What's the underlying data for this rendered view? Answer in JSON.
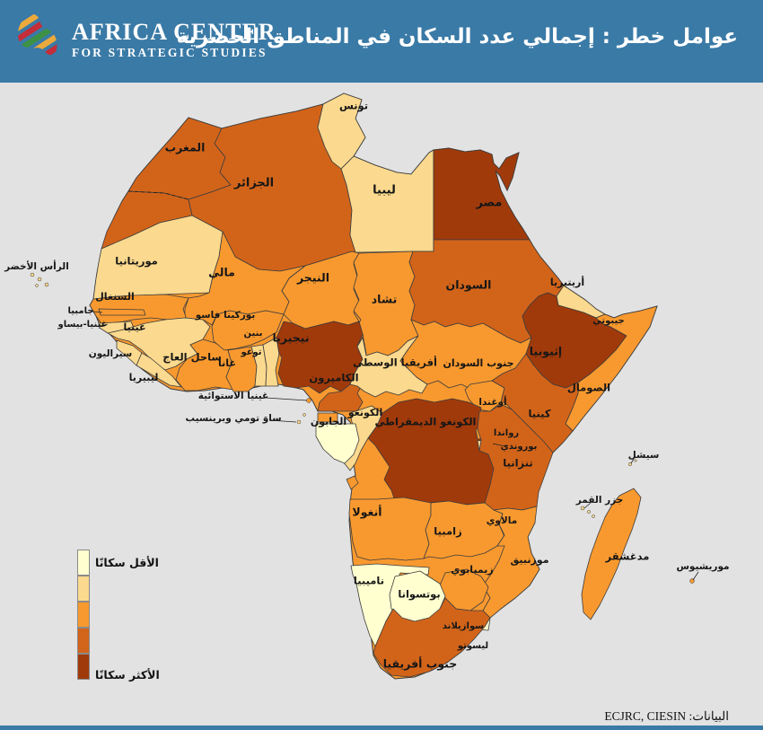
{
  "header": {
    "brand_line1": "AFRICA CENTER",
    "brand_line2": "FOR STRATEGIC STUDIES",
    "title": "عوامل خطر : إجمالي عدد السكان في المناطق الحضرية",
    "header_color": "#3A7AA6",
    "logo_colors": [
      "#3D9144",
      "#EDAA3C",
      "#C42D39",
      "#3D9144",
      "#EDAA3C",
      "#C42D39"
    ]
  },
  "legend": {
    "least_label": "الأقل سكانًا",
    "most_label": "الأكثر سكانًا"
  },
  "footer": {
    "source_label": "البيانات:",
    "source_value": "ECJRC, CIESIN"
  },
  "chart_data": {
    "type": "choropleth",
    "region": "Africa",
    "title": "عوامل خطر : إجمالي عدد السكان في المناطق الحضرية",
    "metric": "إجمالي عدد السكان في المناطق الحضرية",
    "levels_meaning": "1 = least urban population (الأقل سكانًا), 5 = most urban population (الأكثر سكانًا)",
    "palette": [
      "#FFFFD0",
      "#FBD98E",
      "#F8992F",
      "#D2641A",
      "#A03A0B"
    ],
    "ocean_color": "#E2E2E2",
    "border_color": "#3C3C3C",
    "legend": {
      "min_label": "الأقل سكانًا",
      "max_label": "الأكثر سكانًا"
    },
    "source": "ECJRC, CIESIN",
    "countries": [
      {
        "id": "morocco",
        "name": "المغرب",
        "level": 4
      },
      {
        "id": "western-sahara",
        "name": "",
        "level": 4
      },
      {
        "id": "algeria",
        "name": "الجزائر",
        "level": 4
      },
      {
        "id": "tunisia",
        "name": "تونس",
        "level": 2
      },
      {
        "id": "libya",
        "name": "ليبيا",
        "level": 2
      },
      {
        "id": "egypt",
        "name": "مصر",
        "level": 5
      },
      {
        "id": "mauritania",
        "name": "موريتانيا",
        "level": 2
      },
      {
        "id": "mali",
        "name": "مالي",
        "level": 3
      },
      {
        "id": "niger",
        "name": "النيجر",
        "level": 3
      },
      {
        "id": "chad",
        "name": "تشاد",
        "level": 3
      },
      {
        "id": "sudan",
        "name": "السودان",
        "level": 4
      },
      {
        "id": "eritrea",
        "name": "أريتيريا",
        "level": 2
      },
      {
        "id": "djibouti",
        "name": "جيبوتي",
        "level": 2
      },
      {
        "id": "ethiopia",
        "name": "إثيوبيا",
        "level": 5
      },
      {
        "id": "somalia",
        "name": "الصومال",
        "level": 3
      },
      {
        "id": "senegal",
        "name": "السنغال",
        "level": 3
      },
      {
        "id": "gambia",
        "name": "جامبيا",
        "level": 3
      },
      {
        "id": "guinea-bissau",
        "name": "غينيا-بيساو",
        "level": 2
      },
      {
        "id": "guinea",
        "name": "غينيا",
        "level": 2
      },
      {
        "id": "sierra-leone",
        "name": "سيراليون",
        "level": 2
      },
      {
        "id": "liberia",
        "name": "ليبيريا",
        "level": 2
      },
      {
        "id": "ivory-coast",
        "name": "ساحل العاج",
        "level": 3
      },
      {
        "id": "ghana",
        "name": "غانا",
        "level": 3
      },
      {
        "id": "burkina-faso",
        "name": "بوركينا فاسو",
        "level": 3
      },
      {
        "id": "togo",
        "name": "توغو",
        "level": 2
      },
      {
        "id": "benin",
        "name": "بنين",
        "level": 2
      },
      {
        "id": "nigeria",
        "name": "نيجيريا",
        "level": 5
      },
      {
        "id": "cameroon",
        "name": "الكاميرون",
        "level": 4
      },
      {
        "id": "car",
        "name": "أفريقيا الوسطى",
        "level": 2
      },
      {
        "id": "south-sudan",
        "name": "جنوب السودان",
        "level": 3
      },
      {
        "id": "uganda",
        "name": "أوغندا",
        "level": 3
      },
      {
        "id": "kenya",
        "name": "كينيا",
        "level": 4
      },
      {
        "id": "drc",
        "name": "الكونغو الديمقراطي",
        "level": 5
      },
      {
        "id": "congo",
        "name": "الكونغو",
        "level": 2
      },
      {
        "id": "gabon",
        "name": "الجابون",
        "level": 1
      },
      {
        "id": "equatorial-guinea",
        "name": "غينيا الاستوائية",
        "level": 3
      },
      {
        "id": "sao-tome",
        "name": "ساوَ تومي وبرينسيب",
        "level": 2
      },
      {
        "id": "rwanda",
        "name": "رواندا",
        "level": 3
      },
      {
        "id": "burundi",
        "name": "بوروندي",
        "level": 2
      },
      {
        "id": "tanzania",
        "name": "تنزانيا",
        "level": 4
      },
      {
        "id": "angola",
        "name": "أنغولا",
        "level": 3
      },
      {
        "id": "zambia",
        "name": "زامبيا",
        "level": 3
      },
      {
        "id": "malawi",
        "name": "مالاوي",
        "level": 2
      },
      {
        "id": "mozambique",
        "name": "موزنبيق",
        "level": 3
      },
      {
        "id": "zimbabwe",
        "name": "زيمبابوي",
        "level": 3
      },
      {
        "id": "namibia",
        "name": "ناميبيا",
        "level": 1
      },
      {
        "id": "botswana",
        "name": "بوتسوانا",
        "level": 1
      },
      {
        "id": "swaziland",
        "name": "سوازيلاند",
        "level": 1
      },
      {
        "id": "lesotho",
        "name": "ليسوتو",
        "level": 1
      },
      {
        "id": "south-africa",
        "name": "جنوب أفريقيا",
        "level": 4
      },
      {
        "id": "madagascar",
        "name": "مدغشقر",
        "level": 3
      },
      {
        "id": "cape-verde",
        "name": "الرأس الأخضر",
        "level": 2
      },
      {
        "id": "seychelles",
        "name": "سيشل",
        "level": 2
      },
      {
        "id": "comoros",
        "name": "جزر القمر",
        "level": 2
      },
      {
        "id": "mauritius",
        "name": "موريشيوس",
        "level": 3
      }
    ]
  }
}
